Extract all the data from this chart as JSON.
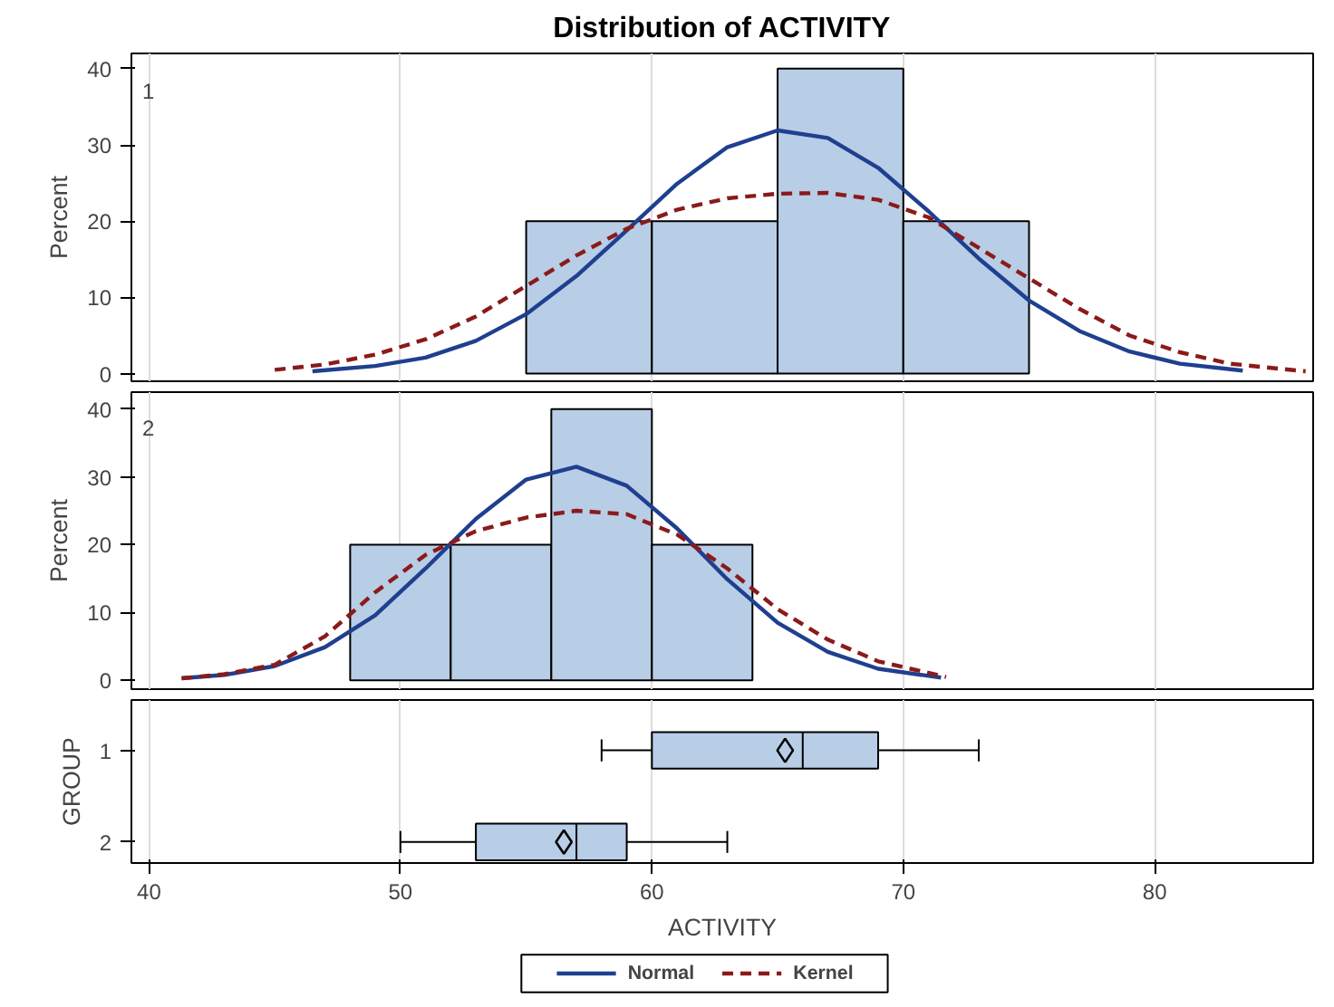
{
  "chart_data": [
    {
      "type": "histogram",
      "title": "Distribution of ACTIVITY",
      "ylabel": "Percent",
      "annotations": [
        "1"
      ],
      "bins": [
        55,
        60,
        65,
        70,
        75
      ],
      "values": [
        20,
        20,
        40,
        20
      ],
      "color": "#b8cde6",
      "xlim": [
        39.3,
        86.3
      ],
      "xticks": [
        40,
        50,
        60,
        70,
        80
      ],
      "ylim": [
        -1,
        42
      ],
      "yticks": [
        0,
        10,
        20,
        30,
        40
      ],
      "tick_labels": "y",
      "grid": "x",
      "legend": "bottom",
      "series": [
        {
          "name": "Normal",
          "type": "line",
          "color": "#1f3f8f",
          "line_style": "solid",
          "x": [
            46.5,
            49,
            51,
            53,
            55,
            57,
            59,
            61,
            63,
            65,
            67,
            69,
            71,
            73,
            75,
            77,
            79,
            81,
            83.5
          ],
          "values": [
            0.3,
            1.0,
            2.1,
            4.3,
            7.8,
            12.8,
            18.8,
            24.9,
            29.7,
            31.9,
            30.9,
            27,
            21.3,
            15.1,
            9.6,
            5.6,
            2.9,
            1.3,
            0.4
          ]
        },
        {
          "name": "Kernel",
          "type": "line",
          "color": "#8b1a1a",
          "line_style": "dashed",
          "x": [
            45,
            47,
            49,
            51,
            53,
            55,
            57,
            59,
            61,
            63,
            65,
            67,
            69,
            71,
            73,
            75,
            77,
            79,
            81,
            83,
            86
          ],
          "values": [
            0.5,
            1.2,
            2.5,
            4.5,
            7.5,
            11.5,
            15.5,
            19,
            21.5,
            23,
            23.6,
            23.7,
            22.8,
            20.5,
            16.5,
            12.5,
            8.5,
            5,
            2.8,
            1.3,
            0.3
          ]
        }
      ]
    },
    {
      "type": "histogram",
      "ylabel": "Percent",
      "annotations": [
        "2"
      ],
      "bins": [
        48,
        52,
        56,
        60,
        64
      ],
      "values": [
        20,
        20,
        40,
        20
      ],
      "color": "#b8cde6",
      "xlim": [
        39.3,
        86.3
      ],
      "xticks": [
        40,
        50,
        60,
        70,
        80
      ],
      "ylim": [
        -1.3,
        42.5
      ],
      "yticks": [
        0,
        10,
        20,
        30,
        40
      ],
      "tick_labels": "y",
      "grid": "x",
      "series": [
        {
          "name": "Normal",
          "type": "line",
          "color": "#1f3f8f",
          "line_style": "solid",
          "x": [
            41.3,
            43,
            45,
            47,
            49,
            51,
            53,
            55,
            57,
            59,
            61,
            63,
            65,
            67,
            69,
            71.5
          ],
          "values": [
            0.3,
            0.8,
            2.1,
            4.9,
            9.6,
            16.5,
            23.8,
            29.6,
            31.5,
            28.7,
            22.4,
            14.9,
            8.5,
            4.2,
            1.7,
            0.4
          ]
        },
        {
          "name": "Kernel",
          "type": "line",
          "color": "#8b1a1a",
          "line_style": "dashed",
          "x": [
            41.3,
            43,
            45,
            47,
            49,
            51,
            53,
            55,
            57,
            59,
            61,
            63,
            65,
            67,
            69,
            71.7
          ],
          "values": [
            0.3,
            0.9,
            2.3,
            6.5,
            13,
            18.5,
            22,
            24,
            25,
            24.5,
            21.5,
            16.5,
            10.5,
            6,
            2.8,
            0.5
          ]
        }
      ]
    },
    {
      "type": "box",
      "orientation": "horizontal",
      "categories": [
        "1",
        "2"
      ],
      "ylabel": "GROUP",
      "xlabel": "ACTIVITY",
      "color": "#b8cde6",
      "xlim": [
        39.3,
        86.3
      ],
      "xticks": [
        40,
        50,
        60,
        70,
        80
      ],
      "grid": "x",
      "boxes": [
        {
          "low": 58,
          "q1": 60,
          "median": 66,
          "q3": 69,
          "high": 73,
          "mean": 65.3
        },
        {
          "low": 50,
          "q1": 53,
          "median": 57,
          "q3": 59,
          "high": 63,
          "mean": 56.5
        }
      ]
    }
  ]
}
